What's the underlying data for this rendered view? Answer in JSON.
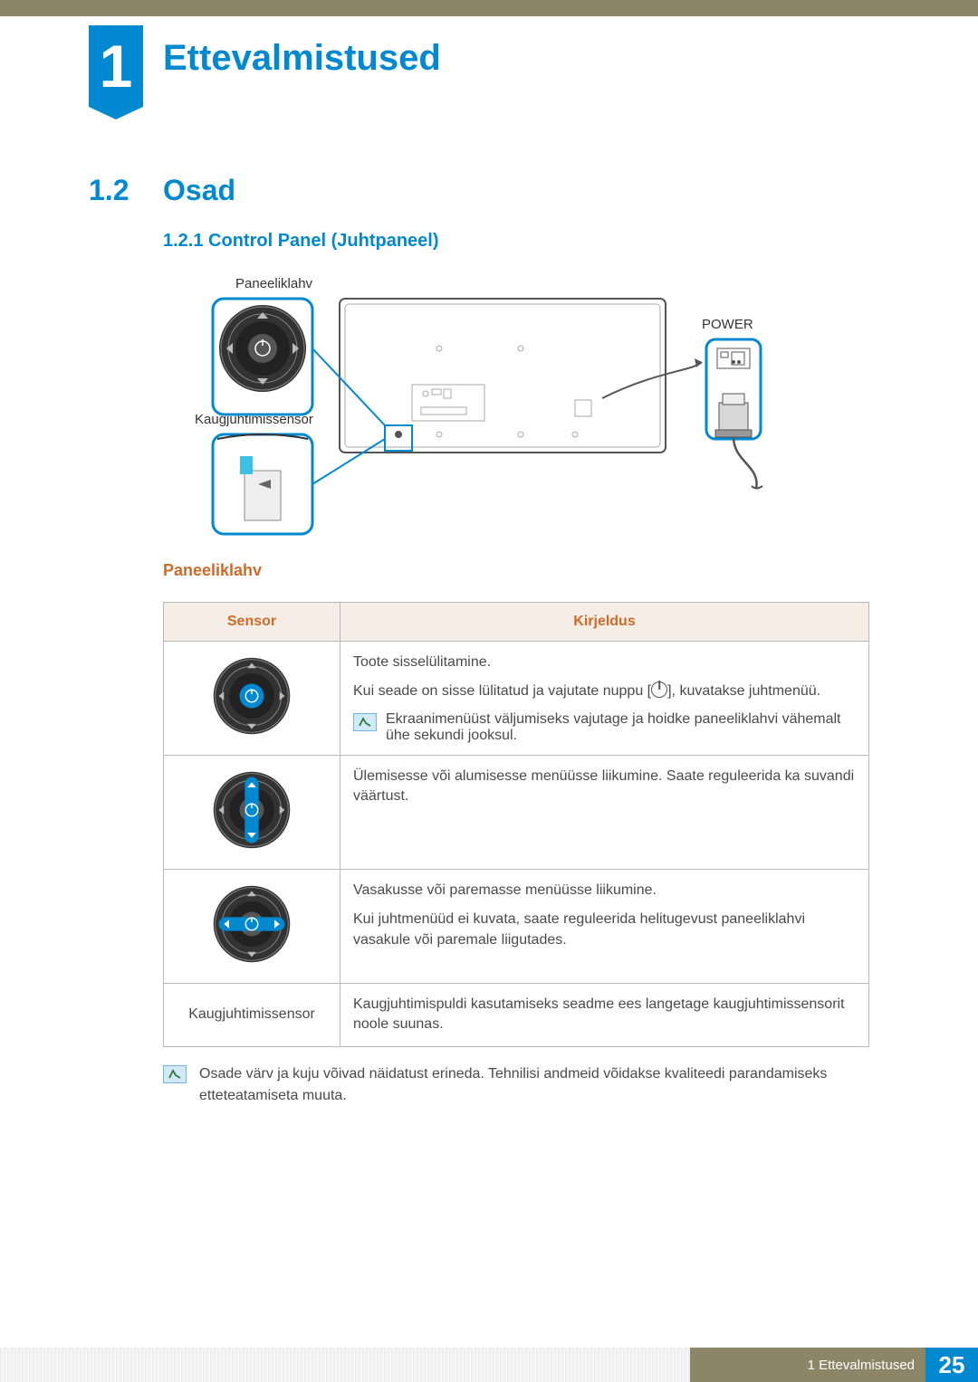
{
  "chapter": {
    "number": "1",
    "title": "Ettevalmistused"
  },
  "section": {
    "number": "1.2",
    "title": "Osad"
  },
  "subsection": {
    "number_title": "1.2.1  Control Panel (Juhtpaneel)"
  },
  "diagram": {
    "label_paneel": "Paneeliklahv",
    "label_power": "POWER",
    "label_kaugj": "Kaugjuhtimissensor"
  },
  "subheading_orange": "Paneeliklahv",
  "table": {
    "headers": {
      "sensor": "Sensor",
      "desc": "Kirjeldus"
    },
    "rows": [
      {
        "sensor_type": "dial",
        "highlight": "center",
        "p1": "Toote sisselülitamine.",
        "p2a": "Kui seade on sisse lülitatud ja vajutate nuppu [",
        "p2b": "], kuvatakse juhtmenüü.",
        "note": "Ekraanimenüüst väljumiseks vajutage ja hoidke paneeliklahvi vähemalt ühe sekundi jooksul."
      },
      {
        "sensor_type": "dial",
        "highlight": "vertical",
        "p1": "Ülemisesse või alumisesse menüüsse liikumine. Saate reguleerida ka suvandi väärtust."
      },
      {
        "sensor_type": "dial",
        "highlight": "horizontal",
        "p1": "Vasakusse või paremasse menüüsse liikumine.",
        "p2": "Kui juhtmenüüd ei kuvata, saate reguleerida helitugevust paneeliklahvi vasakule või paremale liigutades."
      },
      {
        "sensor_type": "text",
        "sensor_text": "Kaugjuhtimissensor",
        "p1": "Kaugjuhtimispuldi kasutamiseks seadme ees langetage kaugjuhtimissensorit noole suunas."
      }
    ]
  },
  "footnote": "Osade värv ja kuju võivad näidatust erineda. Tehnilisi andmeid võidakse kvaliteedi parandamiseks etteteatamiseta muuta.",
  "footer": {
    "chapter_ref": "1 Ettevalmistused",
    "page": "25"
  },
  "colors": {
    "blue": "#0089d0",
    "khaki": "#8b8668",
    "orange": "#ce6b29",
    "table_header_bg": "#f6eee6"
  }
}
